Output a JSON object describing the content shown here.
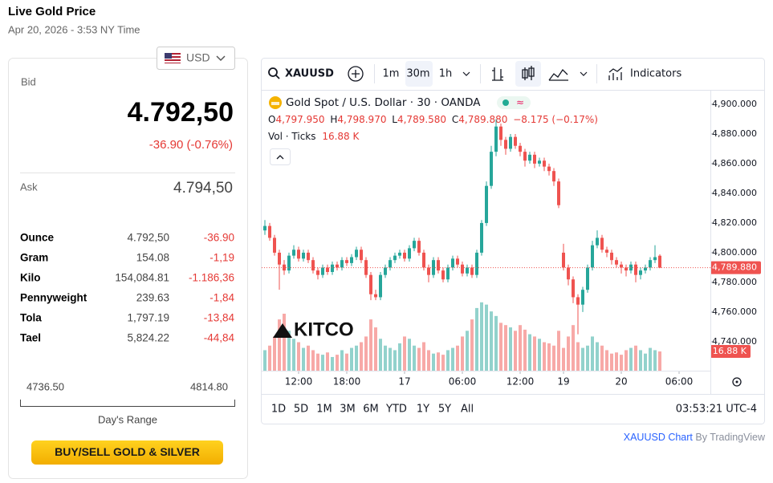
{
  "header": {
    "title": "Live Gold Price",
    "date": "Apr 20, 2026 - 3:53 NY Time"
  },
  "currency": "USD",
  "bid": {
    "label": "Bid",
    "price": "4.792,50",
    "change": "-36.90 (-0.76%)"
  },
  "ask": {
    "label": "Ask",
    "price": "4.794,50"
  },
  "units": [
    {
      "name": "Ounce",
      "price": "4.792,50",
      "change": "-36.90"
    },
    {
      "name": "Gram",
      "price": "154.08",
      "change": "-1,19"
    },
    {
      "name": "Kilo",
      "price": "154,084.81",
      "change": "-1.186,36"
    },
    {
      "name": "Pennyweight",
      "price": "239.63",
      "change": "-1,84"
    },
    {
      "name": "Tola",
      "price": "1,797.19",
      "change": "-13,84"
    },
    {
      "name": "Tael",
      "price": "5,824.22",
      "change": "-44,84"
    }
  ],
  "range": {
    "low": "4736.50",
    "high": "4814.80",
    "label": "Day's Range"
  },
  "button": "BUY/SELL GOLD & SILVER",
  "toolbar": {
    "symbol": "XAUUSD",
    "intervals": [
      "1m",
      "30m",
      "1h"
    ],
    "indicators": "Indicators"
  },
  "ranges": [
    "1D",
    "5D",
    "1M",
    "3M",
    "6M",
    "YTD",
    "1Y",
    "5Y",
    "All"
  ],
  "clock": "03:53:21 UTC-4",
  "logo": "KITCO",
  "footer": {
    "link": "XAUUSD Chart",
    "by": "By TradingView"
  },
  "chart_data": {
    "type": "candlestick",
    "title": "Gold Spot / U.S. Dollar · 30 · OANDA",
    "ohlc_labels": [
      "O",
      "H",
      "L",
      "C"
    ],
    "ohlc_legend": [
      "4,797.950",
      "4,798.970",
      "4,789.580",
      "4,789.880"
    ],
    "change_label": "−8.175 (−0.17%)",
    "volume_title": "Vol · Ticks",
    "volume_legend": "16.88 K",
    "last_price_label": "4,789.880",
    "last_volume_label": "16.88 K",
    "up_color": "#26a69a",
    "down_color": "#ef5350",
    "grid": false,
    "ylim": [
      4720.5,
      4909.7
    ],
    "yticks": [
      {
        "value": 4900,
        "label": "4,900.000"
      },
      {
        "value": 4880,
        "label": "4,880.000"
      },
      {
        "value": 4860,
        "label": "4,860.000"
      },
      {
        "value": 4840,
        "label": "4,840.000"
      },
      {
        "value": 4820,
        "label": "4,820.000"
      },
      {
        "value": 4800,
        "label": "4,800.000"
      },
      {
        "value": 4780,
        "label": "4,780.000"
      },
      {
        "value": 4760,
        "label": "4,760.000"
      },
      {
        "value": 4740,
        "label": "4,740.000"
      }
    ],
    "xticks": [
      {
        "value": 7,
        "label": "12:00"
      },
      {
        "value": 17,
        "label": "18:00"
      },
      {
        "value": 29,
        "label": "17"
      },
      {
        "value": 41,
        "label": "06:00"
      },
      {
        "value": 53,
        "label": "12:00"
      },
      {
        "value": 62,
        "label": "19"
      },
      {
        "value": 74,
        "label": "20"
      },
      {
        "value": 86,
        "label": "06:00"
      }
    ],
    "open": [
      4815,
      4818,
      4810,
      4800,
      4792,
      4788,
      4798,
      4802,
      4796,
      4800,
      4795,
      4788,
      4785,
      4790,
      4787,
      4792,
      4790,
      4795,
      4793,
      4797,
      4802,
      4795,
      4785,
      4772,
      4770,
      4785,
      4790,
      4795,
      4798,
      4800,
      4796,
      4803,
      4808,
      4800,
      4790,
      4785,
      4795,
      4788,
      4782,
      4790,
      4796,
      4792,
      4786,
      4790,
      4785,
      4800,
      4820,
      4845,
      4868,
      4885,
      4876,
      4870,
      4878,
      4872,
      4868,
      4862,
      4866,
      4860,
      4862,
      4858,
      4855,
      4848,
      4800,
      4790,
      4782,
      4770,
      4765,
      4775,
      4790,
      4805,
      4810,
      4802,
      4800,
      4795,
      4792,
      4790,
      4788,
      4792,
      4785,
      4788,
      4790,
      4795,
      4797.95
    ],
    "high": [
      4822,
      4820,
      4812,
      4802,
      4795,
      4800,
      4805,
      4804,
      4802,
      4802,
      4797,
      4790,
      4792,
      4792,
      4794,
      4794,
      4797,
      4797,
      4799,
      4804,
      4804,
      4797,
      4787,
      4775,
      4787,
      4792,
      4797,
      4800,
      4802,
      4802,
      4805,
      4810,
      4810,
      4802,
      4792,
      4797,
      4797,
      4790,
      4792,
      4798,
      4798,
      4794,
      4792,
      4792,
      4802,
      4822,
      4848,
      4872,
      4890,
      4887,
      4878,
      4880,
      4880,
      4874,
      4870,
      4868,
      4868,
      4864,
      4864,
      4860,
      4857,
      4850,
      4806,
      4792,
      4784,
      4772,
      4777,
      4792,
      4808,
      4815,
      4812,
      4804,
      4802,
      4797,
      4794,
      4792,
      4794,
      4794,
      4790,
      4792,
      4797,
      4805,
      4798.97
    ],
    "low": [
      4812,
      4808,
      4798,
      4775,
      4785,
      4786,
      4796,
      4794,
      4794,
      4793,
      4786,
      4782,
      4783,
      4785,
      4785,
      4788,
      4788,
      4791,
      4791,
      4795,
      4793,
      4783,
      4768,
      4768,
      4768,
      4783,
      4788,
      4793,
      4796,
      4794,
      4794,
      4801,
      4798,
      4788,
      4780,
      4783,
      4786,
      4780,
      4780,
      4788,
      4790,
      4784,
      4784,
      4783,
      4783,
      4798,
      4818,
      4843,
      4865,
      4872,
      4866,
      4868,
      4870,
      4865,
      4858,
      4860,
      4857,
      4858,
      4855,
      4852,
      4845,
      4830,
      4788,
      4778,
      4766,
      4745,
      4760,
      4773,
      4788,
      4803,
      4800,
      4797,
      4792,
      4790,
      4786,
      4784,
      4786,
      4780,
      4782,
      4786,
      4788,
      4793,
      4789.58
    ],
    "close": [
      4818,
      4810,
      4800,
      4792,
      4788,
      4798,
      4802,
      4796,
      4800,
      4795,
      4788,
      4785,
      4790,
      4787,
      4792,
      4790,
      4795,
      4793,
      4797,
      4802,
      4795,
      4785,
      4772,
      4770,
      4785,
      4790,
      4795,
      4798,
      4800,
      4796,
      4803,
      4808,
      4800,
      4790,
      4785,
      4795,
      4788,
      4782,
      4790,
      4796,
      4792,
      4786,
      4790,
      4785,
      4800,
      4820,
      4845,
      4868,
      4885,
      4876,
      4870,
      4878,
      4872,
      4868,
      4862,
      4866,
      4860,
      4862,
      4858,
      4855,
      4848,
      4832,
      4790,
      4782,
      4770,
      4765,
      4775,
      4790,
      4805,
      4810,
      4802,
      4800,
      4795,
      4792,
      4790,
      4788,
      4792,
      4785,
      4788,
      4790,
      4795,
      4797,
      4789.88
    ],
    "volume": [
      18,
      22,
      30,
      45,
      50,
      35,
      28,
      25,
      20,
      22,
      18,
      15,
      14,
      16,
      12,
      14,
      18,
      15,
      20,
      22,
      25,
      30,
      45,
      38,
      28,
      22,
      20,
      18,
      24,
      30,
      28,
      22,
      20,
      25,
      18,
      15,
      16,
      14,
      18,
      20,
      22,
      30,
      35,
      45,
      55,
      60,
      58,
      52,
      48,
      42,
      40,
      38,
      35,
      40,
      36,
      32,
      30,
      28,
      25,
      24,
      22,
      35,
      20,
      30,
      40,
      25,
      20,
      22,
      30,
      25,
      22,
      18,
      15,
      16,
      14,
      18,
      20,
      22,
      18,
      15,
      20,
      18,
      16.88
    ]
  }
}
